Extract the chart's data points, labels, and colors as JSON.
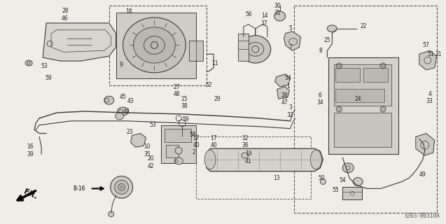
{
  "bg_color": "#f0ede8",
  "fig_width": 6.37,
  "fig_height": 3.2,
  "dpi": 100,
  "diagram_code": "S303-B6310A",
  "line_color": "#3a3a3a",
  "label_color": "#222222"
}
